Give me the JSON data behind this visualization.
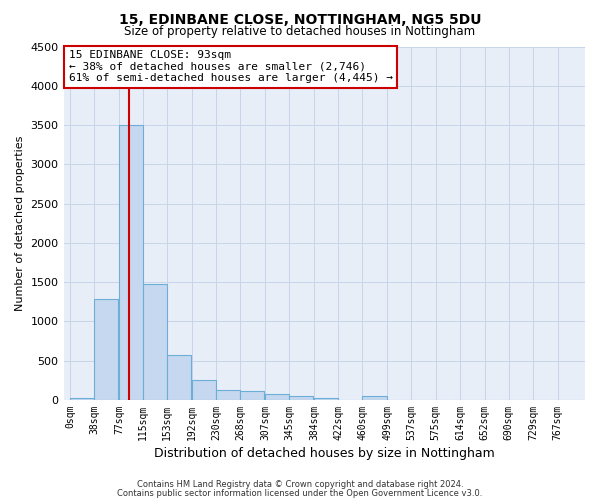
{
  "title_line1": "15, EDINBANE CLOSE, NOTTINGHAM, NG5 5DU",
  "title_line2": "Size of property relative to detached houses in Nottingham",
  "xlabel": "Distribution of detached houses by size in Nottingham",
  "ylabel": "Number of detached properties",
  "footnote1": "Contains HM Land Registry data © Crown copyright and database right 2024.",
  "footnote2": "Contains public sector information licensed under the Open Government Licence v3.0.",
  "bar_edges": [
    0,
    38,
    77,
    115,
    153,
    192,
    230,
    268,
    307,
    345,
    384,
    422,
    460,
    499,
    537,
    575,
    614,
    652,
    690,
    729,
    767
  ],
  "bar_labels": [
    "0sqm",
    "38sqm",
    "77sqm",
    "115sqm",
    "153sqm",
    "192sqm",
    "230sqm",
    "268sqm",
    "307sqm",
    "345sqm",
    "384sqm",
    "422sqm",
    "460sqm",
    "499sqm",
    "537sqm",
    "575sqm",
    "614sqm",
    "652sqm",
    "690sqm",
    "729sqm",
    "767sqm"
  ],
  "bar_values": [
    30,
    1280,
    3500,
    1480,
    575,
    250,
    130,
    110,
    70,
    45,
    30,
    0,
    55,
    0,
    0,
    0,
    0,
    0,
    0,
    0,
    0
  ],
  "bar_color": "#c5d8ef",
  "bar_edge_color": "#6baed6",
  "annotation_box_text": "15 EDINBANE CLOSE: 93sqm\n← 38% of detached houses are smaller (2,746)\n61% of semi-detached houses are larger (4,445) →",
  "marker_sqm": 93,
  "ylim": [
    0,
    4500
  ],
  "yticks": [
    0,
    500,
    1000,
    1500,
    2000,
    2500,
    3000,
    3500,
    4000,
    4500
  ],
  "grid_color": "#c8d4e8",
  "background_color": "#e8eef8",
  "marker_line_color": "#cc0000",
  "figsize": [
    6.0,
    5.0
  ],
  "dpi": 100
}
